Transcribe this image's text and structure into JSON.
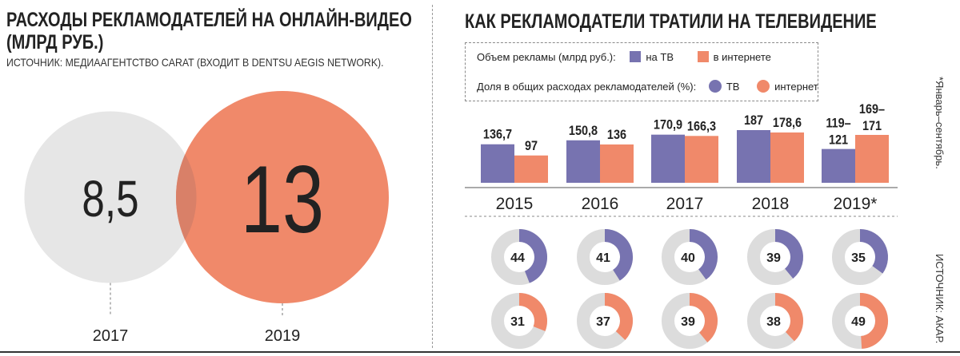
{
  "left_panel": {
    "title_line1": "РАСХОДЫ РЕКЛАМОДАТЕЛЕЙ НА ОНЛАЙН-ВИДЕО",
    "title_line2": "(МЛРД РУБ.)",
    "source": "ИСТОЧНИК: МЕДИААГЕНТСТВО CARAT (ВХОДИТ В DENTSU AEGIS NETWORK)."
  },
  "right_panel": {
    "title": "КАК РЕКЛАМОДАТЕЛИ ТРАТИЛИ НА ТЕЛЕВИДЕНИЕ",
    "legend_row1_label": "Объем рекламы (млрд руб.):",
    "legend_tv": "на ТВ",
    "legend_internet": "в интернете",
    "legend_row2_label": "Доля в общих расходах рекламодателей (%):",
    "legend_tv_share": "ТВ",
    "legend_internet_share": "интернет",
    "note": "*Январь–сентябрь.",
    "source": "ИСТОЧНИК: АКАР."
  },
  "colors": {
    "tv": "#7773b0",
    "internet": "#f0896a",
    "circle_2017": "#e6e6e6",
    "circle_2019": "#f0896a",
    "overlap": "#d98068",
    "ring_track": "#dcdcdc"
  },
  "chart_data": [
    {
      "type": "bubble",
      "categories": [
        "2017",
        "2019"
      ],
      "values": [
        8.5,
        13
      ],
      "labels": [
        "8,5",
        "13"
      ],
      "title": "РАСХОДЫ РЕКЛАМОДАТЕЛЕЙ НА ОНЛАЙН-ВИДЕО (МЛРД РУБ.)"
    },
    {
      "type": "bar",
      "categories": [
        "2015",
        "2016",
        "2017",
        "2018",
        "2019*"
      ],
      "series": [
        {
          "name": "на ТВ",
          "values": [
            136.7,
            150.8,
            170.9,
            187,
            120
          ],
          "labels": [
            "136,7",
            "150,8",
            "170,9",
            "187",
            "119–121"
          ]
        },
        {
          "name": "в интернете",
          "values": [
            97,
            136,
            166.3,
            178.6,
            170
          ],
          "labels": [
            "97",
            "136",
            "166,3",
            "178,6",
            "169–171"
          ]
        }
      ]
    },
    {
      "type": "donut",
      "categories": [
        "2015",
        "2016",
        "2017",
        "2018",
        "2019*"
      ],
      "series": [
        {
          "name": "ТВ",
          "values": [
            44,
            41,
            40,
            39,
            35
          ]
        },
        {
          "name": "интернет",
          "values": [
            31,
            37,
            39,
            38,
            49
          ]
        }
      ]
    }
  ]
}
